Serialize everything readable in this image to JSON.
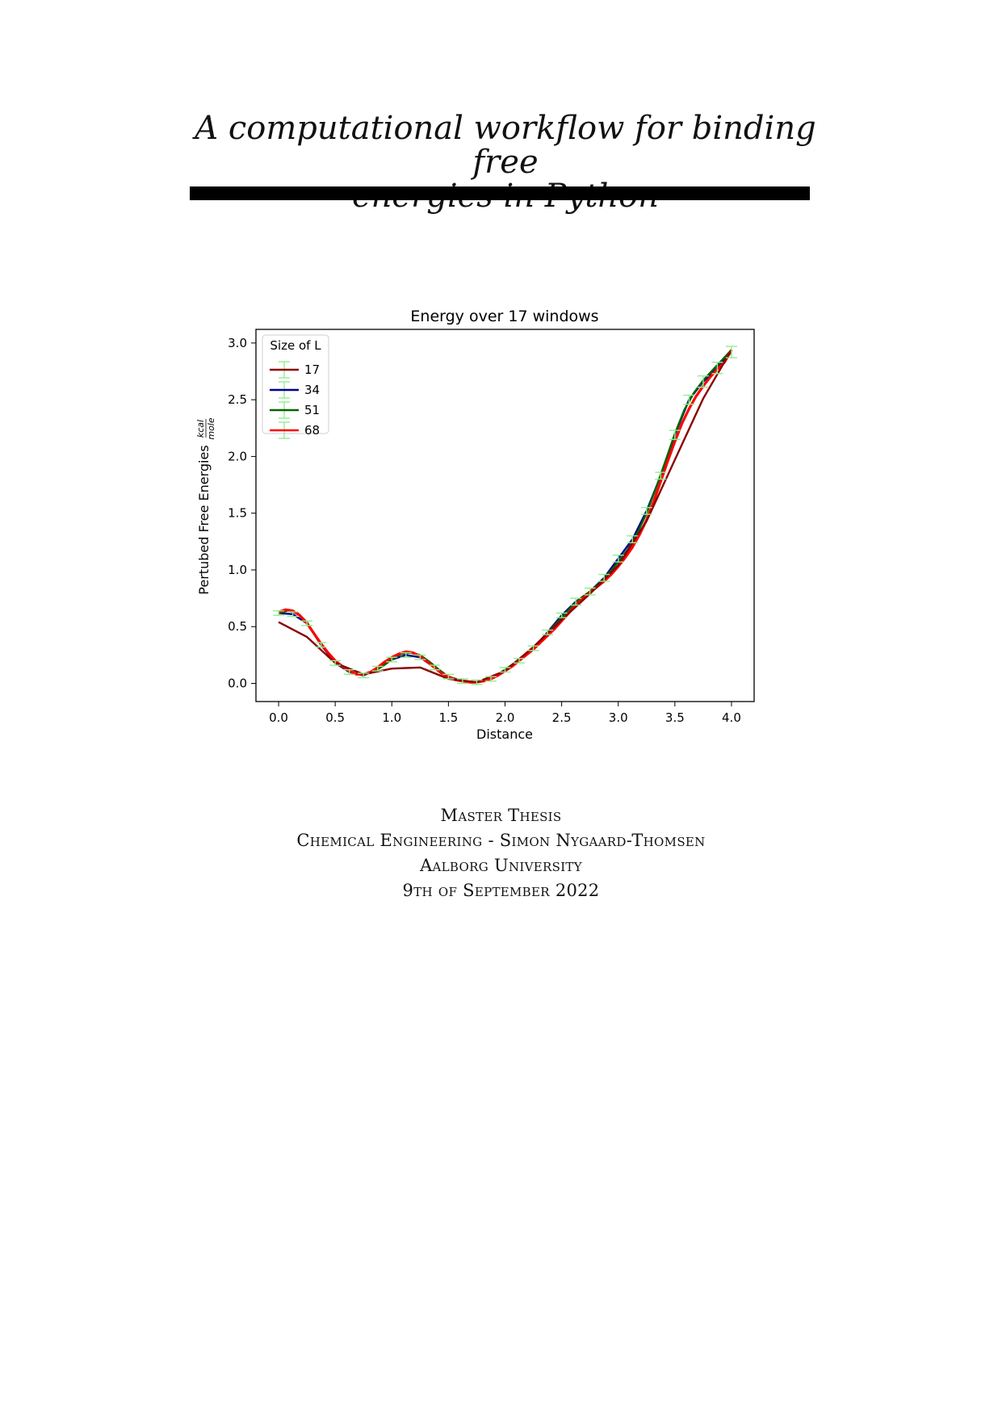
{
  "title": {
    "line1": "A computational workflow for binding free",
    "line2": "energies in Python"
  },
  "chart_data": {
    "type": "line",
    "title": "Energy over 17 windows",
    "xlabel": "Distance",
    "ylabel": "Pertubed Free Energies",
    "ylabel_unit_num": "kcal",
    "ylabel_unit_den": "mole",
    "xlim": [
      -0.2,
      4.2
    ],
    "ylim": [
      -0.16,
      3.12
    ],
    "xticks": [
      0.0,
      0.5,
      1.0,
      1.5,
      2.0,
      2.5,
      3.0,
      3.5,
      4.0
    ],
    "xtick_labels": [
      "0.0",
      "0.5",
      "1.0",
      "1.5",
      "2.0",
      "2.5",
      "3.0",
      "3.5",
      "4.0"
    ],
    "yticks": [
      0.0,
      0.5,
      1.0,
      1.5,
      2.0,
      2.5,
      3.0
    ],
    "ytick_labels": [
      "0.0",
      "0.5",
      "1.0",
      "1.5",
      "2.0",
      "2.5",
      "3.0"
    ],
    "legend_title": "Size of L",
    "legend_position": "top-left",
    "errorbar_color": "#90ee90",
    "series": [
      {
        "name": "17",
        "color": "#8b0000",
        "x": [
          0.0,
          0.25,
          0.5,
          0.75,
          1.0,
          1.25,
          1.5,
          1.75,
          2.0,
          2.25,
          2.5,
          2.75,
          3.0,
          3.25,
          3.5,
          3.75,
          4.0
        ],
        "y": [
          0.54,
          0.41,
          0.18,
          0.08,
          0.13,
          0.14,
          0.04,
          0.01,
          0.11,
          0.32,
          0.56,
          0.79,
          1.04,
          1.43,
          1.97,
          2.51,
          2.94
        ]
      },
      {
        "name": "34",
        "color": "#00008b",
        "x": [
          0.0,
          0.125,
          0.25,
          0.375,
          0.5,
          0.625,
          0.75,
          0.875,
          1.0,
          1.125,
          1.25,
          1.375,
          1.5,
          1.625,
          1.75,
          1.875,
          2.0,
          2.125,
          2.25,
          2.375,
          2.5,
          2.625,
          2.75,
          2.875,
          3.0,
          3.125,
          3.25,
          3.375,
          3.5,
          3.625,
          3.75,
          3.875,
          4.0
        ],
        "y": [
          0.62,
          0.61,
          0.53,
          0.34,
          0.18,
          0.1,
          0.07,
          0.13,
          0.21,
          0.25,
          0.23,
          0.14,
          0.06,
          0.02,
          0.01,
          0.04,
          0.12,
          0.2,
          0.31,
          0.45,
          0.6,
          0.72,
          0.81,
          0.93,
          1.1,
          1.27,
          1.52,
          1.83,
          2.19,
          2.5,
          2.66,
          2.78,
          2.92
        ]
      },
      {
        "name": "51",
        "color": "#006400",
        "x": [
          0.0,
          0.083,
          0.167,
          0.25,
          0.333,
          0.417,
          0.5,
          0.583,
          0.667,
          0.75,
          0.833,
          0.917,
          1.0,
          1.083,
          1.167,
          1.25,
          1.333,
          1.417,
          1.5,
          1.583,
          1.667,
          1.75,
          1.833,
          1.917,
          2.0,
          2.083,
          2.167,
          2.25,
          2.333,
          2.417,
          2.5,
          2.583,
          2.667,
          2.75,
          2.833,
          2.917,
          3.0,
          3.083,
          3.167,
          3.25,
          3.333,
          3.417,
          3.5,
          3.583,
          3.667,
          3.75,
          3.833,
          3.917,
          4.0
        ],
        "y": [
          0.62,
          0.64,
          0.62,
          0.54,
          0.41,
          0.29,
          0.19,
          0.13,
          0.09,
          0.08,
          0.1,
          0.15,
          0.21,
          0.26,
          0.27,
          0.25,
          0.19,
          0.12,
          0.06,
          0.03,
          0.01,
          0.01,
          0.03,
          0.07,
          0.12,
          0.18,
          0.25,
          0.32,
          0.4,
          0.49,
          0.58,
          0.67,
          0.75,
          0.81,
          0.88,
          0.97,
          1.07,
          1.18,
          1.32,
          1.5,
          1.72,
          1.96,
          2.2,
          2.41,
          2.56,
          2.67,
          2.76,
          2.85,
          2.94
        ]
      },
      {
        "name": "68",
        "color": "#ff0000",
        "x": [
          0.0,
          0.0625,
          0.125,
          0.1875,
          0.25,
          0.3125,
          0.375,
          0.4375,
          0.5,
          0.5625,
          0.625,
          0.6875,
          0.75,
          0.8125,
          0.875,
          0.9375,
          1.0,
          1.0625,
          1.125,
          1.1875,
          1.25,
          1.3125,
          1.375,
          1.4375,
          1.5,
          1.5625,
          1.625,
          1.6875,
          1.75,
          1.8125,
          1.875,
          1.9375,
          2.0,
          2.0625,
          2.125,
          2.1875,
          2.25,
          2.3125,
          2.375,
          2.4375,
          2.5,
          2.5625,
          2.625,
          2.6875,
          2.75,
          2.8125,
          2.875,
          2.9375,
          3.0,
          3.0625,
          3.125,
          3.1875,
          3.25,
          3.3125,
          3.375,
          3.4375,
          3.5,
          3.5625,
          3.625,
          3.6875,
          3.75,
          3.8125,
          3.875,
          3.9375,
          4.0
        ],
        "y": [
          0.63,
          0.65,
          0.64,
          0.6,
          0.53,
          0.44,
          0.35,
          0.27,
          0.2,
          0.15,
          0.11,
          0.08,
          0.08,
          0.1,
          0.14,
          0.19,
          0.23,
          0.26,
          0.28,
          0.27,
          0.24,
          0.19,
          0.14,
          0.09,
          0.06,
          0.03,
          0.02,
          0.01,
          0.01,
          0.02,
          0.04,
          0.07,
          0.11,
          0.15,
          0.2,
          0.25,
          0.3,
          0.36,
          0.42,
          0.48,
          0.55,
          0.62,
          0.69,
          0.75,
          0.8,
          0.85,
          0.9,
          0.96,
          1.03,
          1.11,
          1.2,
          1.31,
          1.44,
          1.6,
          1.78,
          1.96,
          2.13,
          2.29,
          2.42,
          2.53,
          2.62,
          2.7,
          2.77,
          2.83,
          2.94
        ]
      }
    ],
    "errorbars": {
      "x": [
        0.0,
        0.125,
        0.25,
        0.375,
        0.5,
        0.625,
        0.75,
        0.875,
        1.0,
        1.125,
        1.25,
        1.375,
        1.5,
        1.625,
        1.75,
        1.875,
        2.0,
        2.125,
        2.25,
        2.375,
        2.5,
        2.625,
        2.75,
        2.875,
        3.0,
        3.125,
        3.25,
        3.375,
        3.5,
        3.625,
        3.75,
        3.875,
        4.0
      ],
      "y": [
        0.62,
        0.61,
        0.53,
        0.34,
        0.18,
        0.1,
        0.07,
        0.13,
        0.21,
        0.25,
        0.23,
        0.14,
        0.06,
        0.02,
        0.01,
        0.04,
        0.12,
        0.2,
        0.31,
        0.45,
        0.6,
        0.72,
        0.81,
        0.93,
        1.1,
        1.27,
        1.52,
        1.83,
        2.19,
        2.5,
        2.66,
        2.78,
        2.92
      ],
      "err": [
        0.02,
        0.02,
        0.02,
        0.02,
        0.02,
        0.02,
        0.02,
        0.02,
        0.02,
        0.02,
        0.02,
        0.02,
        0.02,
        0.02,
        0.02,
        0.02,
        0.02,
        0.02,
        0.02,
        0.02,
        0.02,
        0.03,
        0.03,
        0.03,
        0.03,
        0.03,
        0.03,
        0.03,
        0.04,
        0.04,
        0.05,
        0.05,
        0.05
      ]
    }
  },
  "caption": {
    "line1": "Master Thesis",
    "line2": "Chemical Engineering - Simon Nygaard-Thomsen",
    "line3": "Aalborg University",
    "line4": "9th of September 2022"
  }
}
